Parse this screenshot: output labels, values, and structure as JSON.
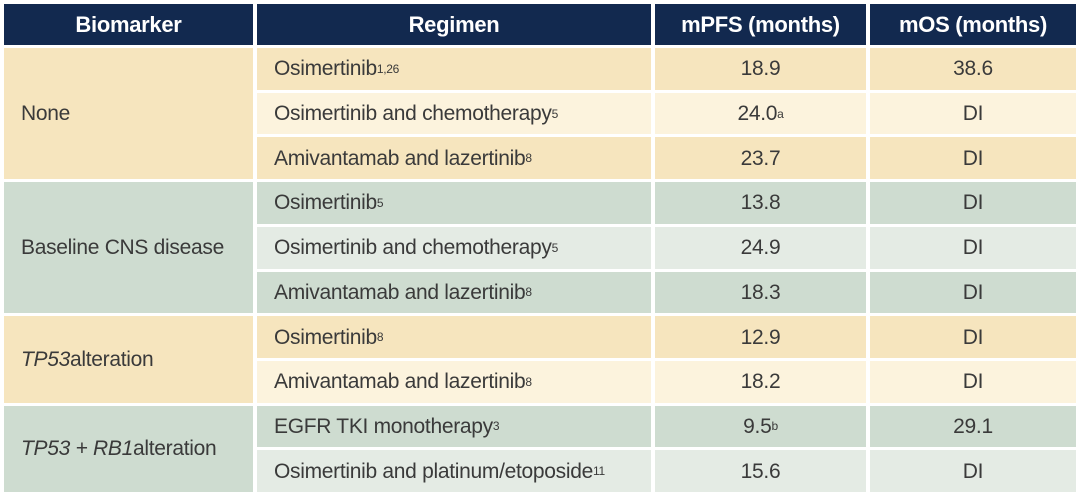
{
  "chart_data": {
    "type": "table",
    "columns": [
      "Biomarker",
      "Regimen",
      "mPFS (months)",
      "mOS (months)"
    ],
    "groups": [
      {
        "theme": "cream",
        "biomarker_parts": [
          {
            "text": "None",
            "italic": false
          }
        ],
        "rows": [
          {
            "regimen": "Osimertinib",
            "regimen_sup": "1,26",
            "mpfs": "18.9",
            "mpfs_sup": "",
            "mos": "38.6"
          },
          {
            "regimen": "Osimertinib and chemotherapy",
            "regimen_sup": "5",
            "mpfs": "24.0",
            "mpfs_sup": "a",
            "mos": "DI"
          },
          {
            "regimen": "Amivantamab and lazertinib",
            "regimen_sup": "8",
            "mpfs": "23.7",
            "mpfs_sup": "",
            "mos": "DI"
          }
        ]
      },
      {
        "theme": "green",
        "biomarker_parts": [
          {
            "text": "Baseline CNS disease",
            "italic": false
          }
        ],
        "rows": [
          {
            "regimen": "Osimertinib",
            "regimen_sup": "5",
            "mpfs": "13.8",
            "mpfs_sup": "",
            "mos": "DI"
          },
          {
            "regimen": "Osimertinib and chemotherapy",
            "regimen_sup": "5",
            "mpfs": "24.9",
            "mpfs_sup": "",
            "mos": "DI"
          },
          {
            "regimen": "Amivantamab and lazertinib",
            "regimen_sup": "8",
            "mpfs": "18.3",
            "mpfs_sup": "",
            "mos": "DI"
          }
        ]
      },
      {
        "theme": "cream",
        "biomarker_parts": [
          {
            "text": "TP53",
            "italic": true
          },
          {
            "text": " alteration",
            "italic": false
          }
        ],
        "rows": [
          {
            "regimen": "Osimertinib",
            "regimen_sup": "8",
            "mpfs": "12.9",
            "mpfs_sup": "",
            "mos": "DI"
          },
          {
            "regimen": "Amivantamab and lazertinib",
            "regimen_sup": "8",
            "mpfs": "18.2",
            "mpfs_sup": "",
            "mos": "DI"
          }
        ]
      },
      {
        "theme": "green",
        "biomarker_parts": [
          {
            "text": "TP53 + RB1",
            "italic": true
          },
          {
            "text": " alteration",
            "italic": false
          }
        ],
        "rows": [
          {
            "regimen": "EGFR TKI monotherapy",
            "regimen_sup": "3",
            "mpfs": "9.5",
            "mpfs_sup": "b",
            "mos": "29.1"
          },
          {
            "regimen": "Osimertinib and platinum/etoposide",
            "regimen_sup": "11",
            "mpfs": "15.6",
            "mpfs_sup": "",
            "mos": "DI"
          }
        ]
      }
    ],
    "colors": {
      "header_bg": "#12294F",
      "header_text": "#FFFFFF",
      "cream_dark": "#F6E5BE",
      "cream_light": "#FCF3DD",
      "green_dark": "#CEDCD0",
      "green_light": "#E4EBE4",
      "body_text": "#3A3A3A"
    }
  }
}
